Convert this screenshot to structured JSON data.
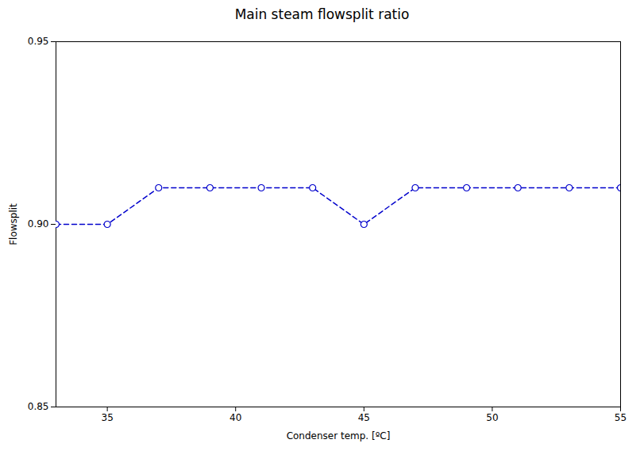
{
  "chart_data": {
    "type": "line",
    "title": "Main steam flowsplit ratio",
    "xlabel": "Condenser temp. [ºC]",
    "ylabel": "Flowsplit",
    "x": [
      33,
      35,
      37,
      39,
      41,
      43,
      45,
      47,
      49,
      51,
      53,
      55
    ],
    "values": [
      0.9,
      0.9,
      0.91,
      0.91,
      0.91,
      0.91,
      0.9,
      0.91,
      0.91,
      0.91,
      0.91,
      0.91
    ],
    "color": "#0000cc",
    "marker": "o",
    "line_style": "dashed",
    "xlim": [
      33,
      55
    ],
    "ylim": [
      0.85,
      0.95
    ],
    "xticks": [
      35,
      40,
      45,
      50,
      55
    ],
    "yticks": [
      0.85,
      {
        "value": 0.9,
        "label": "0.90"
      },
      0.95
    ],
    "grid": false
  }
}
